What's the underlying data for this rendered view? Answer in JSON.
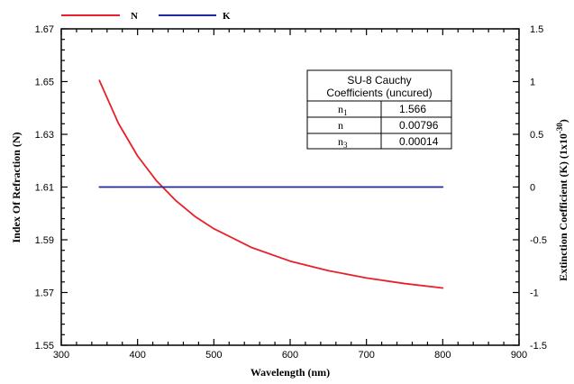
{
  "chart_data": {
    "type": "line",
    "xlabel": "Wavelength (nm)",
    "ylabel_left": "Index Of Refraction (N)",
    "ylabel_right": {
      "prefix": "Extinction Coefficient (K) (1x10",
      "exponent": "-30",
      "suffix": ")"
    },
    "xlim": [
      300,
      900
    ],
    "ylim_left": [
      1.55,
      1.67
    ],
    "ylim_right": [
      -1.5,
      1.5
    ],
    "x_ticks": [
      "300",
      "400",
      "500",
      "600",
      "700",
      "800",
      "900"
    ],
    "y_left_ticks": [
      "1.55",
      "1.57",
      "1.59",
      "1.61",
      "1.63",
      "1.65",
      "1.67"
    ],
    "y_right_ticks": [
      "-1.5",
      "-1",
      "-0.5",
      "0",
      "0.5",
      "1",
      "1.5"
    ],
    "grid": false,
    "legend_position": "top-left, above plot",
    "series": [
      {
        "name": "N",
        "axis": "left",
        "color": "#e8202a",
        "x": [
          350,
          375,
          400,
          425,
          450,
          475,
          500,
          550,
          600,
          650,
          700,
          750,
          800
        ],
        "values": [
          1.6504,
          1.6341,
          1.6218,
          1.6123,
          1.6049,
          1.5989,
          1.5942,
          1.587,
          1.5819,
          1.5783,
          1.5755,
          1.5734,
          1.5717
        ]
      },
      {
        "name": "K",
        "axis": "right",
        "color": "#1f2a9e",
        "x": [
          350,
          800
        ],
        "values": [
          0,
          0
        ]
      }
    ],
    "annotation_table": {
      "title_line1": "SU-8 Cauchy",
      "title_line2": "Coefficients (uncured)",
      "rows": [
        {
          "symbol": "n",
          "subscript": "1",
          "value": "1.566"
        },
        {
          "symbol": "n",
          "subscript": "",
          "value": "0.00796"
        },
        {
          "symbol": "n",
          "subscript": "3",
          "value": "0.00014"
        }
      ]
    }
  }
}
